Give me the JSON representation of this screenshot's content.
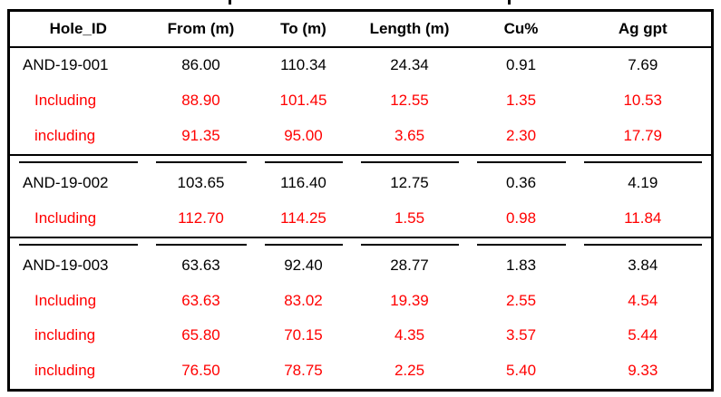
{
  "colors": {
    "normal_text": "#000000",
    "highlight_text": "#ff0000",
    "border": "#000000"
  },
  "chart_data": {
    "type": "table",
    "columns": [
      "Hole_ID",
      "From (m)",
      "To (m)",
      "Length (m)",
      "Cu%",
      "Ag gpt"
    ],
    "rows": [
      {
        "cells": [
          "AND-19-001",
          "86.00",
          "110.34",
          "24.34",
          "0.91",
          "7.69"
        ],
        "highlight": false,
        "new_group": false
      },
      {
        "cells": [
          "Including",
          "88.90",
          "101.45",
          "12.55",
          "1.35",
          "10.53"
        ],
        "highlight": true,
        "new_group": false
      },
      {
        "cells": [
          "including",
          "91.35",
          "95.00",
          "3.65",
          "2.30",
          "17.79"
        ],
        "highlight": true,
        "new_group": false
      },
      {
        "cells": [
          "AND-19-002",
          "103.65",
          "116.40",
          "12.75",
          "0.36",
          "4.19"
        ],
        "highlight": false,
        "new_group": true
      },
      {
        "cells": [
          "Including",
          "112.70",
          "114.25",
          "1.55",
          "0.98",
          "11.84"
        ],
        "highlight": true,
        "new_group": false
      },
      {
        "cells": [
          "AND-19-003",
          "63.63",
          "92.40",
          "28.77",
          "1.83",
          "3.84"
        ],
        "highlight": false,
        "new_group": true
      },
      {
        "cells": [
          "Including",
          "63.63",
          "83.02",
          "19.39",
          "2.55",
          "4.54"
        ],
        "highlight": true,
        "new_group": false
      },
      {
        "cells": [
          "including",
          "65.80",
          "70.15",
          "4.35",
          "3.57",
          "5.44"
        ],
        "highlight": true,
        "new_group": false
      },
      {
        "cells": [
          "including",
          "76.50",
          "78.75",
          "2.25",
          "5.40",
          "9.33"
        ],
        "highlight": true,
        "new_group": false
      }
    ]
  }
}
